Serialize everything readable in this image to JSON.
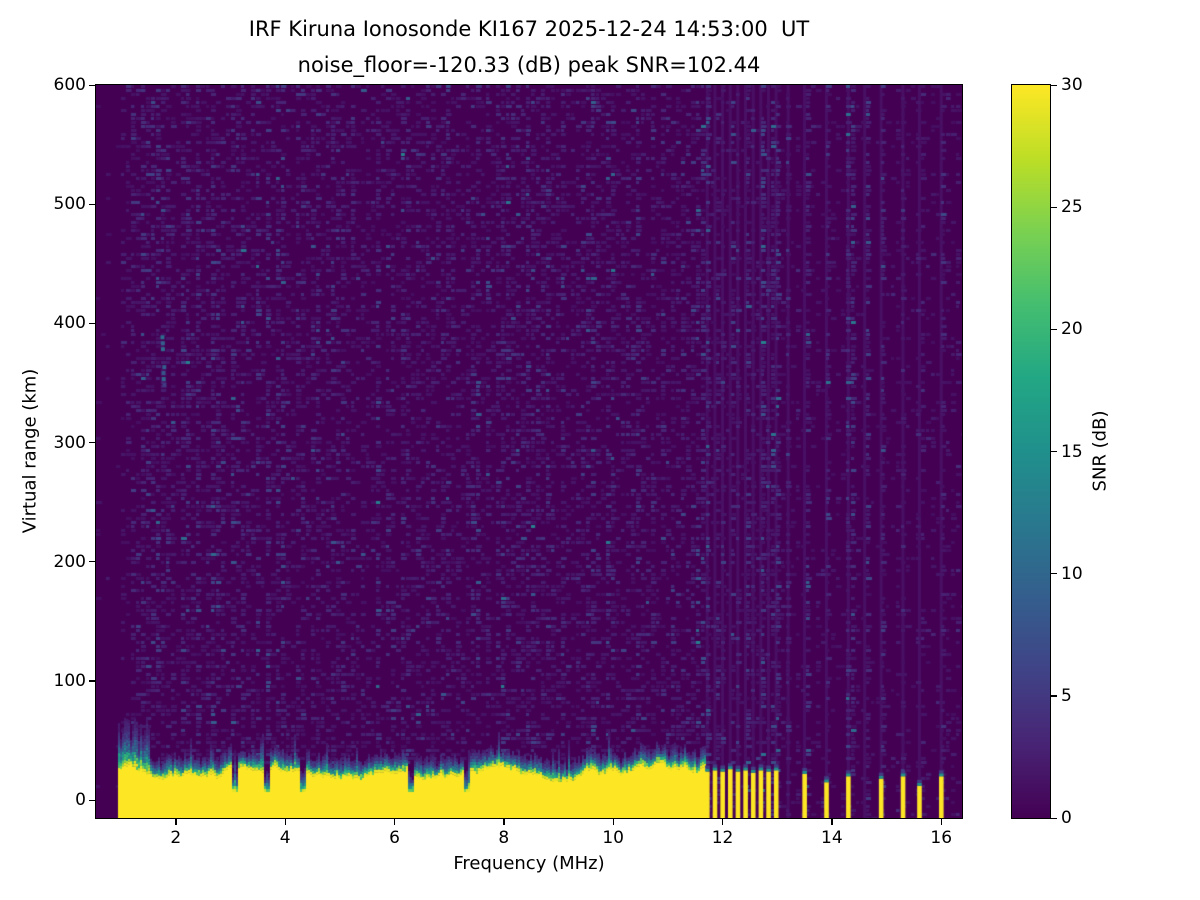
{
  "chart_data": {
    "type": "heatmap",
    "title_line1": "IRF Kiruna Ionosonde KI167 2025-12-24 14:53:00  UT",
    "title_line2": "noise_floor=-120.33 (dB) peak SNR=102.44",
    "xlabel": "Frequency (MHz)",
    "ylabel": "Virtual range (km)",
    "colorbar_label": "SNR (dB)",
    "xlim": [
      0.54,
      16.38
    ],
    "ylim": [
      -15,
      600
    ],
    "x_ticks": [
      2,
      4,
      6,
      8,
      10,
      12,
      14,
      16
    ],
    "y_ticks": [
      0,
      100,
      200,
      300,
      400,
      500,
      600
    ],
    "colorbar": {
      "min": 0,
      "max": 30,
      "ticks": [
        0,
        5,
        10,
        15,
        20,
        25,
        30
      ],
      "colormap": "viridis"
    },
    "noise_floor_db": -120.33,
    "peak_snr_db": 102.44,
    "features": {
      "background_snr_db": 0,
      "noise_speckle_max_db": 13,
      "ground_echo": {
        "freq_start": 0.95,
        "freq_end": 11.65,
        "top_km": 23,
        "snr_db": 30
      },
      "notch_freqs": [
        3.05,
        3.65,
        4.3,
        6.3,
        7.3
      ],
      "rf_bars": [
        {
          "f": 11.72,
          "top": 24
        },
        {
          "f": 11.86,
          "top": 25
        },
        {
          "f": 12.0,
          "top": 24
        },
        {
          "f": 12.14,
          "top": 26
        },
        {
          "f": 12.28,
          "top": 24
        },
        {
          "f": 12.42,
          "top": 25
        },
        {
          "f": 12.56,
          "top": 23
        },
        {
          "f": 12.7,
          "top": 25
        },
        {
          "f": 12.84,
          "top": 24
        },
        {
          "f": 12.98,
          "top": 25
        },
        {
          "f": 13.5,
          "top": 22
        },
        {
          "f": 13.9,
          "top": 15
        },
        {
          "f": 14.3,
          "top": 20
        },
        {
          "f": 14.9,
          "top": 18
        },
        {
          "f": 15.3,
          "top": 20
        },
        {
          "f": 15.6,
          "top": 12
        },
        {
          "f": 16.0,
          "top": 20
        }
      ],
      "vertical_stripes": [
        11.72,
        11.86,
        12.0,
        12.14,
        12.28,
        12.42,
        12.56,
        12.7,
        12.84,
        12.98,
        13.2,
        13.5,
        13.9,
        14.3,
        14.6,
        14.9,
        15.3,
        15.6,
        16.0
      ],
      "sporadic_blob": {
        "f": 1.75,
        "range_km": [
          350,
          395
        ]
      }
    },
    "colors": {
      "viridis_low": "#440154",
      "viridis_mid": "#21918c",
      "viridis_high": "#fde725",
      "text": "#000000",
      "background": "#ffffff"
    }
  }
}
